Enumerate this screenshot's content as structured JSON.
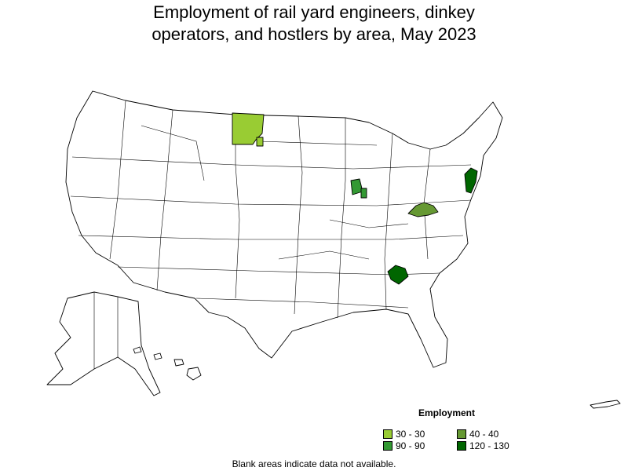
{
  "title_line1": "Employment of rail yard engineers, dinkey",
  "title_line2": "operators, and hostlers by area, May 2023",
  "legend": {
    "title": "Employment",
    "items": [
      {
        "label": "30 - 30",
        "color": "#99cc33"
      },
      {
        "label": "40 - 40",
        "color": "#669933"
      },
      {
        "label": "90 - 90",
        "color": "#339933"
      },
      {
        "label": "120 - 130",
        "color": "#006600"
      }
    ]
  },
  "note": "Blank areas indicate data not available.",
  "shaded_areas": [
    {
      "name": "north-dakota-nonmetro-area",
      "color": "#99cc33"
    },
    {
      "name": "central-indiana-area",
      "color": "#339933"
    },
    {
      "name": "kentucky-west-virginia-area",
      "color": "#669933"
    },
    {
      "name": "new-jersey-new-york-area",
      "color": "#006600"
    },
    {
      "name": "atlanta-georgia-area",
      "color": "#006600"
    }
  ]
}
